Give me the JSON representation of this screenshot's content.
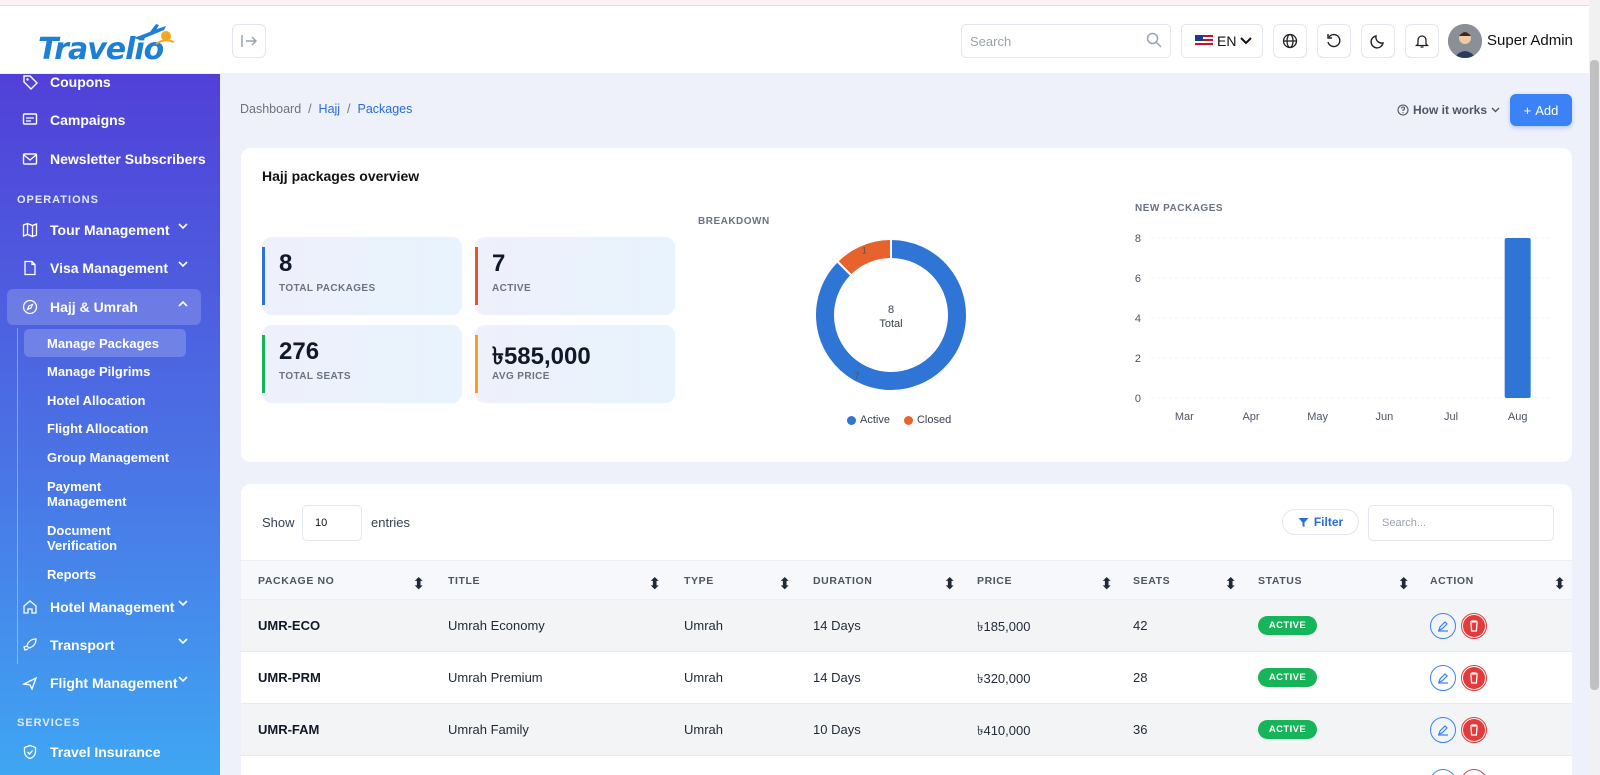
{
  "app": {
    "name": "Travelio"
  },
  "header": {
    "search_placeholder": "Search",
    "language": "EN",
    "user_name": "Super Admin"
  },
  "sidebar": {
    "items_top": [
      "Coupons",
      "Campaigns",
      "Newsletter Subscribers"
    ],
    "section_operations": "OPERATIONS",
    "ops": [
      "Tour Management",
      "Visa Management",
      "Hajj & Umrah"
    ],
    "sub_items": [
      "Manage Packages",
      "Manage Pilgrims",
      "Hotel Allocation",
      "Flight Allocation",
      "Group Management",
      "Payment Management",
      "Document Verification",
      "Reports"
    ],
    "ops_more": [
      "Hotel Management",
      "Transport",
      "Flight Management"
    ],
    "section_services": "SERVICES",
    "services": [
      "Travel Insurance"
    ]
  },
  "breadcrumb": [
    "Dashboard",
    "Hajj",
    "Packages"
  ],
  "toolbar": {
    "how_it_works": "How it works",
    "add": "Add"
  },
  "overview": {
    "title": "Hajj packages overview",
    "stats": [
      {
        "value": "8",
        "label": "TOTAL PACKAGES",
        "color": "#2f6fd8"
      },
      {
        "value": "7",
        "label": "ACTIVE",
        "color": "#e8542a"
      },
      {
        "value": "276",
        "label": "TOTAL SEATS",
        "color": "#16b55a"
      },
      {
        "value": "৳585,000",
        "label": "AVG PRICE",
        "color": "#f0a321"
      }
    ],
    "breakdown_label": "BREAKDOWN",
    "new_packages_label": "NEW PACKAGES"
  },
  "chart_data": [
    {
      "type": "pie",
      "donut": true,
      "center_value": "8",
      "center_label": "Total",
      "labels": [
        "Active",
        "Closed"
      ],
      "values": [
        7,
        1
      ],
      "colors": [
        "#2f75d6",
        "#e8622e"
      ],
      "legend": "bottom"
    },
    {
      "type": "bar",
      "categories": [
        "Mar",
        "Apr",
        "May",
        "Jun",
        "Jul",
        "Aug"
      ],
      "values": [
        0,
        0,
        0,
        0,
        0,
        8
      ],
      "ylim": [
        0,
        8
      ],
      "yticks": [
        0,
        2,
        4,
        6,
        8
      ],
      "color": "#2f75d6",
      "grid": true
    }
  ],
  "table": {
    "show_label": "Show",
    "entries_value": "10",
    "entries_label": "entries",
    "filter_label": "Filter",
    "search_placeholder": "Search...",
    "columns": [
      "PACKAGE NO",
      "TITLE",
      "TYPE",
      "DURATION",
      "PRICE",
      "SEATS",
      "STATUS",
      "ACTION"
    ],
    "rows": [
      {
        "package_no": "UMR-ECO",
        "title": "Umrah Economy",
        "type": "Umrah",
        "duration": "14 Days",
        "price": "৳185,000",
        "seats": "42",
        "status": "ACTIVE"
      },
      {
        "package_no": "UMR-PRM",
        "title": "Umrah Premium",
        "type": "Umrah",
        "duration": "14 Days",
        "price": "৳320,000",
        "seats": "28",
        "status": "ACTIVE"
      },
      {
        "package_no": "UMR-FAM",
        "title": "Umrah Family",
        "type": "Umrah",
        "duration": "10 Days",
        "price": "৳410,000",
        "seats": "36",
        "status": "ACTIVE"
      }
    ]
  },
  "colors": {
    "accent": "#3b82f6",
    "success": "#16b55a",
    "danger": "#e23b3b"
  }
}
